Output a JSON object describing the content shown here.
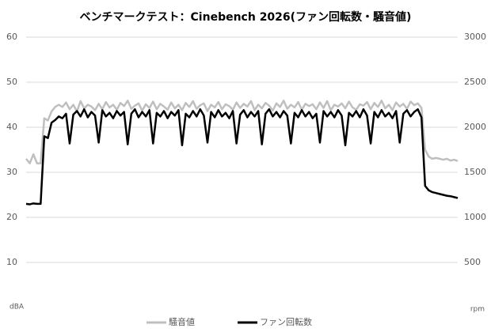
{
  "chart_data": {
    "type": "line",
    "title": "ベンチマークテスト：Cinebench 2026(ファン回転数・騒音値)",
    "y_label": "dBA",
    "y2_label": "rpm",
    "ylim": [
      0,
      60
    ],
    "yticks": [
      10,
      20,
      30,
      40,
      50,
      60
    ],
    "y2lim": [
      0,
      3000
    ],
    "y2ticks": [
      500,
      1000,
      1500,
      2000,
      2500,
      3000
    ],
    "grid": true,
    "legend": "bottom",
    "series": [
      {
        "name": "騒音値",
        "color": "#bfbfbf",
        "values": [
          33,
          32,
          34,
          32,
          32,
          42,
          41.5,
          43.5,
          44.5,
          45,
          44.5,
          45.5,
          44,
          45,
          43.5,
          45.8,
          44.2,
          45,
          44.6,
          43.8,
          45.2,
          44,
          45.6,
          44.4,
          45,
          43.9,
          45.4,
          44.7,
          45.9,
          44.1,
          44.8,
          45.3,
          43.7,
          45.1,
          44.3,
          45.7,
          44,
          45.2,
          44.6,
          43.9,
          45.5,
          44.2,
          45,
          43.8,
          45.4,
          44.5,
          45.8,
          44.1,
          44.9,
          45.3,
          43.6,
          45,
          44.4,
          45.6,
          44,
          45.1,
          44.7,
          43.9,
          45.5,
          44.3,
          45.2,
          44.6,
          45.8,
          43.8,
          45,
          44.2,
          45.4,
          44.8,
          43.7,
          45.3,
          44.5,
          45.9,
          44.1,
          45,
          44.4,
          45.6,
          43.9,
          45.2,
          44.7,
          45.1,
          44,
          45.5,
          44.3,
          45.8,
          43.8,
          45,
          44.6,
          45.3,
          44.2,
          45.7,
          44.4,
          43.9,
          45.1,
          44.8,
          45.6,
          44,
          45.4,
          44.5,
          45.9,
          44.2,
          45,
          43.8,
          45.5,
          44.6,
          45.2,
          44.1,
          45.7,
          44.9,
          45.3,
          44.3,
          35,
          33.5,
          33,
          33.2,
          33,
          32.8,
          33,
          32.6,
          32.8,
          32.5
        ]
      },
      {
        "name": "ファン回転数",
        "color": "#000000",
        "axis": "y2",
        "values": [
          1150,
          1145,
          1155,
          1150,
          1150,
          1900,
          1880,
          2050,
          2080,
          2120,
          2100,
          2150,
          1820,
          2140,
          2180,
          2120,
          2200,
          2110,
          2170,
          2130,
          1830,
          2190,
          2120,
          2160,
          2100,
          2180,
          2130,
          2170,
          1810,
          2150,
          2200,
          2110,
          2170,
          2120,
          2190,
          1820,
          2160,
          2120,
          2180,
          2100,
          2170,
          2130,
          2190,
          1800,
          2150,
          2110,
          2180,
          2120,
          2200,
          2130,
          1830,
          2170,
          2110,
          2190,
          2120,
          2160,
          2100,
          2180,
          1820,
          2140,
          2190,
          2110,
          2170,
          2120,
          2180,
          1810,
          2150,
          2200,
          2120,
          2170,
          2110,
          2180,
          2130,
          1820,
          2160,
          2110,
          2190,
          2120,
          2170,
          2100,
          2150,
          1830,
          2180,
          2120,
          2170,
          2110,
          2190,
          2130,
          1800,
          2160,
          2120,
          2180,
          2110,
          2200,
          2130,
          1820,
          2170,
          2110,
          2190,
          2120,
          2160,
          2100,
          2180,
          1830,
          2150,
          2190,
          2120,
          2170,
          2200,
          2110,
          1350,
          1300,
          1280,
          1270,
          1260,
          1250,
          1240,
          1235,
          1225,
          1215
        ]
      }
    ]
  }
}
